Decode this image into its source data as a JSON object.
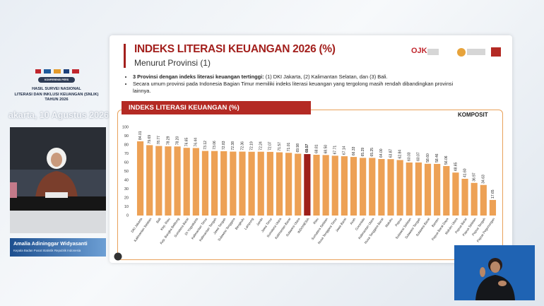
{
  "broadcast": {
    "badge": "KONFERENSI PERS",
    "headline": [
      "HASIL SURVEI NASIONAL",
      "LITERASI DAN INKLUSI KEUANGAN (SNLIK)",
      "TAHUN 2026"
    ],
    "date": "akarta, 10 Agustus 2026",
    "speaker_name": "Amalia Adininggar Widyasanti",
    "speaker_role": "Kepala Badan Pusat Statistik Republik Indonesia"
  },
  "slide": {
    "title": "INDEKS LITERASI KEUANGAN 2026 (%)",
    "subtitle": "Menurut Provinsi (1)",
    "bullets": [
      {
        "bold": "3 Provinsi dengan indeks literasi keuangan tertinggi:",
        "text": " (1) DKI Jakarta, (2) Kalimantan Selatan, dan (3) Bali."
      },
      {
        "text": "Secara umum provinsi pada Indonesia Bagian Timur memiliki indeks literasi keuangan yang tergolong masih rendah dibandingkan provinsi lainnya."
      }
    ],
    "logo": "OJK"
  },
  "chart_data": {
    "type": "bar",
    "title": "INDEKS LITERASI KEUANGAN (%)",
    "subtitle": "KOMPOSIT",
    "categories": [
      "DKI Jakarta",
      "Kalimantan Selatan",
      "Bali",
      "Kep. Riau",
      "Kep. Bangka Belitung",
      "Sumatera Barat",
      "DI Yogyakarta",
      "Kalimantan Timur",
      "Kalimantan Tengah",
      "Jawa Tengah",
      "Sulawesi Tenggara",
      "Bengkulu",
      "Lampung",
      "Jambi",
      "Jawa Timur",
      "Sumatera Utara",
      "Kalimantan Barat",
      "Sulawesi Utara",
      "INDONESIA",
      "Riau",
      "Sumatera Selatan",
      "Nusa Tenggara Timur",
      "Jawa Barat",
      "Aceh",
      "Gorontalo",
      "Kalimantan Utara",
      "Nusa Tenggara Barat",
      "Maluku",
      "Papua",
      "Sulawesi Selatan",
      "Sulawesi Tengah",
      "Sulawesi Barat",
      "Banten",
      "Papua Barat Daya",
      "Maluku Utara",
      "Papua Barat",
      "Papua Selatan",
      "Papua Tengah",
      "Papua Pegunungan"
    ],
    "values": [
      84.01,
      79.69,
      78.77,
      78.29,
      78.2,
      76.65,
      76.44,
      73.12,
      73.06,
      72.83,
      72.38,
      72.36,
      72.19,
      72.24,
      72.07,
      71.57,
      71.01,
      69.98,
      69.57,
      68.81,
      68.5,
      67.71,
      67.14,
      66.33,
      65.29,
      65.25,
      64,
      63.87,
      62.84,
      60.03,
      60.07,
      58.6,
      58.46,
      56.06,
      48.65,
      41.6,
      36.97,
      34.63,
      17.65
    ],
    "value_labels": [
      "84.01",
      "79.69",
      "78.77",
      "78.29",
      "78.20",
      "76.65",
      "76.44",
      "73.12",
      "73.06",
      "72.83",
      "72.38",
      "72.36",
      "72.19",
      "72.24",
      "72.07",
      "71.57",
      "71.01",
      "69.98",
      "69.57",
      "68.81",
      "68.50",
      "67.71",
      "67.14",
      "66.33",
      "65.29",
      "65.25",
      "64.00",
      "63.87",
      "62.84",
      "60.03",
      "60.07",
      "58.60",
      "58.46",
      "56.06",
      "48.65",
      "41.60",
      "36.97",
      "34.63",
      "17.65"
    ],
    "color": "#eda155",
    "colors": [
      "#eda155",
      "#eda155",
      "#eda155",
      "#eda155",
      "#eda155",
      "#eda155",
      "#eda155",
      "#eda155",
      "#eda155",
      "#eda155",
      "#eda155",
      "#eda155",
      "#eda155",
      "#eda155",
      "#eda155",
      "#eda155",
      "#eda155",
      "#eda155",
      "#9e1f1a",
      "#eda155",
      "#eda155",
      "#eda155",
      "#eda155",
      "#eda155",
      "#eda155",
      "#eda155",
      "#eda155",
      "#eda155",
      "#eda155",
      "#eda155",
      "#eda155",
      "#eda155",
      "#eda155",
      "#eda155",
      "#eda155",
      "#eda155",
      "#eda155",
      "#eda155",
      "#eda155"
    ],
    "ylim": [
      0,
      100
    ],
    "yticks": [
      0,
      10,
      20,
      30,
      40,
      50,
      60,
      70,
      80,
      90,
      100
    ],
    "grid": false
  }
}
